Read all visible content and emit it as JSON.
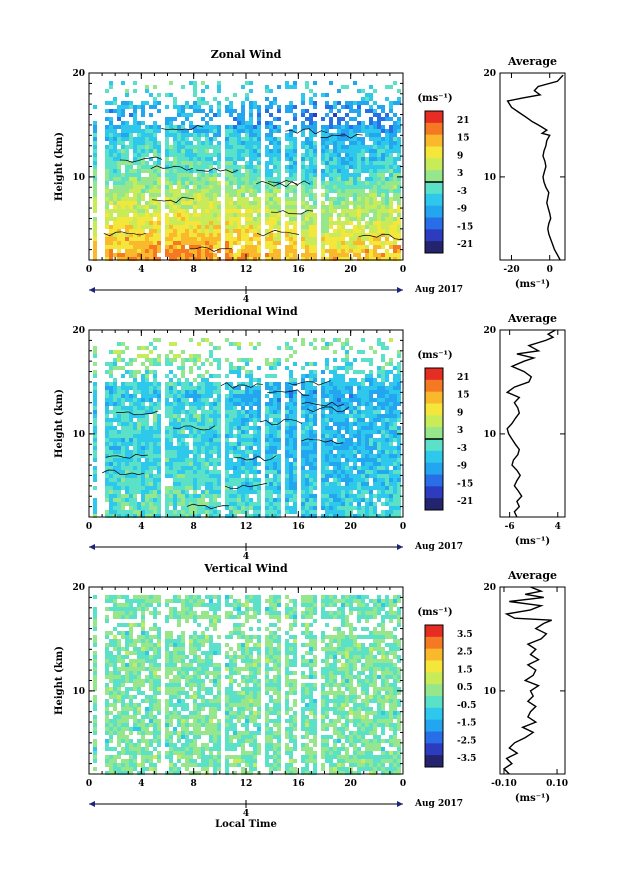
{
  "chart_data": [
    {
      "type": "heatmap",
      "title": "Zonal Wind",
      "ylabel": "Height (km)",
      "xlim": [
        0,
        24
      ],
      "ylim": [
        2,
        20
      ],
      "x_ticks": [
        "0",
        "4",
        "8",
        "12",
        "16",
        "20",
        "0"
      ],
      "y_ticks": [
        "20",
        "10"
      ],
      "x_ticks2": [
        "4"
      ],
      "date_label": "Aug 2017",
      "colorbar": {
        "unit": "(ms⁻¹)",
        "range": [
          -24,
          24
        ],
        "ticks": [
          "21",
          "15",
          "9",
          "3",
          "-3",
          "-9",
          "-15",
          "-21"
        ],
        "zero_line": true
      },
      "data_gaps_hours": [
        [
          0.5,
          1.0
        ],
        [
          5.3,
          5.8
        ],
        [
          9.8,
          10.2
        ],
        [
          13.0,
          13.3
        ],
        [
          14.6,
          14.9
        ],
        [
          15.6,
          15.9
        ],
        [
          17.2,
          17.6
        ]
      ],
      "profile_summary_ms": [
        {
          "height_km": 3,
          "value": 14
        },
        {
          "height_km": 5,
          "value": 9
        },
        {
          "height_km": 8,
          "value": 4
        },
        {
          "height_km": 11,
          "value": -3
        },
        {
          "height_km": 14,
          "value": -6
        },
        {
          "height_km": 16,
          "value": -12
        },
        {
          "height_km": 18,
          "value": -4
        }
      ],
      "contour_level": 0
    },
    {
      "type": "line",
      "title": "Average",
      "xlabel": "(ms⁻¹)",
      "x_ticks": [
        "-20",
        "0"
      ],
      "y_ticks": [
        "20",
        "10"
      ],
      "xlim": [
        -26,
        8
      ],
      "ylim": [
        2,
        20
      ],
      "series": [
        {
          "x": [
            5.5,
            4.0,
            2.5,
            1.5,
            0.5,
            -0.5,
            -1.0,
            -0.5,
            0.5,
            0.0,
            -0.8,
            -1.5,
            -1.0,
            -0.5,
            -2.0,
            -3.0,
            -3.5,
            -2.8,
            -2.0,
            -2.5,
            -3.5,
            -3.0,
            -2.0,
            -1.5,
            0.0,
            -4.0,
            -1.5,
            -6.0,
            -9.0,
            -12.0,
            -16.0,
            -20.0,
            -22.0,
            -14.0,
            -5.0,
            -8.0,
            -6.0,
            4.0,
            7.0
          ],
          "y": [
            2.0,
            2.5,
            3.0,
            3.5,
            4.0,
            4.5,
            5.0,
            5.5,
            6.0,
            6.5,
            7.0,
            7.5,
            8.0,
            8.5,
            9.0,
            9.5,
            10.0,
            10.5,
            11.0,
            11.5,
            12.0,
            12.5,
            13.0,
            13.5,
            14.0,
            14.2,
            14.5,
            15.0,
            15.3,
            15.7,
            16.2,
            16.7,
            17.3,
            17.6,
            17.9,
            18.3,
            18.7,
            19.2,
            19.8
          ]
        }
      ]
    },
    {
      "type": "heatmap",
      "title": "Meridional Wind",
      "ylabel": "Height (km)",
      "xlim": [
        0,
        24
      ],
      "ylim": [
        2,
        20
      ],
      "x_ticks": [
        "0",
        "4",
        "8",
        "12",
        "16",
        "20",
        "0"
      ],
      "y_ticks": [
        "20",
        "10"
      ],
      "x_ticks2": [
        "4"
      ],
      "date_label": "Aug 2017",
      "colorbar": {
        "unit": "(ms⁻¹)",
        "range": [
          -24,
          24
        ],
        "ticks": [
          "21",
          "15",
          "9",
          "3",
          "-3",
          "-9",
          "-15",
          "-21"
        ],
        "zero_line": true
      },
      "data_gaps_hours": [
        [
          0.5,
          1.0
        ],
        [
          5.3,
          5.8
        ],
        [
          9.8,
          10.2
        ],
        [
          13.0,
          13.3
        ],
        [
          14.6,
          14.9
        ],
        [
          15.6,
          15.9
        ],
        [
          17.2,
          17.6
        ]
      ],
      "profile_summary_ms": [
        {
          "height_km": 3,
          "value": -3
        },
        {
          "height_km": 6,
          "value": -5
        },
        {
          "height_km": 9,
          "value": -6
        },
        {
          "height_km": 12,
          "value": -5
        },
        {
          "height_km": 14,
          "value": -8
        },
        {
          "height_km": 16,
          "value": -3
        },
        {
          "height_km": 18,
          "value": 1
        }
      ],
      "contour_level": 0
    },
    {
      "type": "line",
      "title": "Average",
      "xlabel": "(ms⁻¹)",
      "x_ticks": [
        "-6",
        "4"
      ],
      "y_ticks": [
        "20",
        "10"
      ],
      "xlim": [
        -8,
        5.5
      ],
      "ylim": [
        2,
        20
      ],
      "series": [
        {
          "x": [
            -4.5,
            -5.0,
            -4.0,
            -4.5,
            -3.5,
            -4.2,
            -5.0,
            -4.5,
            -3.8,
            -4.5,
            -5.5,
            -5.2,
            -4.3,
            -4.0,
            -4.8,
            -5.5,
            -6.2,
            -6.5,
            -5.5,
            -4.8,
            -4.0,
            -4.3,
            -5.0,
            -4.0,
            -6.5,
            -5.0,
            -2.0,
            -1.5,
            -3.0,
            -5.5,
            -3.0,
            -1.0,
            -4.5,
            0.0,
            -2.0,
            1.5,
            3.0,
            2.0,
            3.5
          ],
          "y": [
            2.0,
            2.5,
            3.0,
            3.5,
            4.0,
            4.5,
            5.0,
            5.5,
            6.0,
            6.5,
            7.0,
            7.5,
            8.0,
            8.5,
            9.0,
            9.5,
            10.0,
            10.5,
            11.0,
            11.5,
            12.0,
            12.5,
            13.0,
            13.5,
            14.0,
            14.5,
            15.0,
            15.5,
            16.0,
            16.5,
            17.0,
            17.3,
            17.7,
            18.0,
            18.5,
            19.0,
            19.3,
            19.6,
            20.0
          ]
        }
      ]
    },
    {
      "type": "heatmap",
      "title": "Vertical Wind",
      "ylabel": "Height (km)",
      "xlabel": "Local Time",
      "xlim": [
        0,
        24
      ],
      "ylim": [
        2,
        20
      ],
      "x_ticks": [
        "0",
        "4",
        "8",
        "12",
        "16",
        "20",
        "0"
      ],
      "y_ticks": [
        "20",
        "10"
      ],
      "x_ticks2": [
        "4"
      ],
      "date_label": "Aug 2017",
      "colorbar": {
        "unit": "(ms⁻¹)",
        "range": [
          -4,
          4
        ],
        "ticks": [
          "3.5",
          "2.5",
          "1.5",
          "0.5",
          "-0.5",
          "-1.5",
          "-2.5",
          "-3.5"
        ],
        "zero_line": false
      },
      "data_gaps_hours": [
        [
          0.5,
          1.0
        ],
        [
          5.3,
          5.8
        ],
        [
          9.8,
          10.2
        ],
        [
          13.0,
          13.3
        ],
        [
          14.6,
          14.9
        ],
        [
          15.6,
          15.9
        ],
        [
          17.2,
          17.6
        ]
      ],
      "profile_summary_ms": [
        {
          "height_km": 3,
          "value": 0.02
        },
        {
          "height_km": 8,
          "value": 0.0
        },
        {
          "height_km": 13,
          "value": 0.01
        },
        {
          "height_km": 18,
          "value": -0.02
        }
      ],
      "contour_level": null
    },
    {
      "type": "line",
      "title": "Average",
      "xlabel": "(ms⁻¹)",
      "x_ticks": [
        "-0.10",
        "0.10"
      ],
      "y_ticks": [
        "20",
        "10"
      ],
      "xlim": [
        -0.115,
        0.13
      ],
      "ylim": [
        2,
        20
      ],
      "series": [
        {
          "x": [
            -0.08,
            -0.1,
            -0.07,
            -0.09,
            -0.05,
            -0.08,
            -0.06,
            -0.02,
            0.01,
            -0.03,
            0.02,
            -0.01,
            0.0,
            0.02,
            -0.01,
            0.01,
            0.0,
            0.03,
            -0.02,
            0.01,
            0.02,
            -0.01,
            0.03,
            0.0,
            0.02,
            -0.01,
            0.04,
            0.06,
            0.02,
            0.05,
            0.08,
            -0.06,
            -0.09,
            0.0,
            0.04,
            -0.08,
            0.05,
            -0.02,
            0.04,
            0.0
          ],
          "y": [
            2.0,
            2.5,
            3.0,
            3.5,
            4.0,
            4.5,
            5.0,
            5.5,
            6.0,
            6.5,
            7.0,
            7.5,
            8.0,
            8.5,
            9.0,
            9.5,
            10.0,
            10.5,
            11.0,
            11.5,
            12.0,
            12.5,
            13.0,
            13.5,
            14.0,
            14.5,
            15.0,
            15.5,
            16.0,
            16.5,
            16.8,
            17.0,
            17.4,
            17.8,
            18.2,
            18.6,
            19.0,
            19.3,
            19.6,
            20.0
          ]
        }
      ]
    }
  ]
}
